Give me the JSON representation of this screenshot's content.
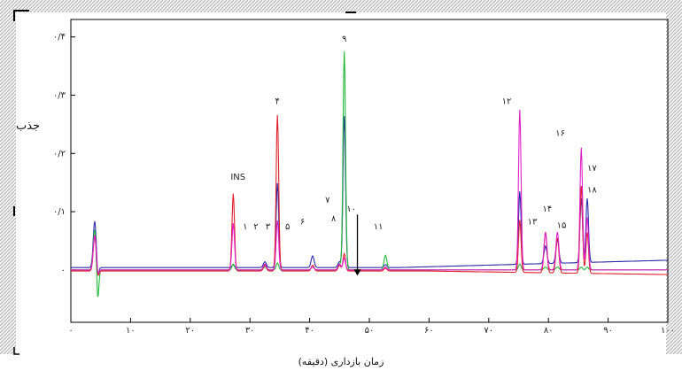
{
  "chart_data": {
    "type": "line",
    "title": "",
    "ylabel": "جذب",
    "xlabel": "زمان بازداری (دقیقه)",
    "xlim": [
      0,
      100
    ],
    "ylim": [
      -0.09,
      0.43
    ],
    "x_ticks": [
      0,
      10,
      20,
      30,
      40,
      50,
      60,
      70,
      80,
      90,
      100
    ],
    "x_tick_labels": [
      "۰",
      "۱۰",
      "۲۰",
      "۳۰",
      "۴۰",
      "۵۰",
      "۶۰",
      "۷۰",
      "۸۰",
      "۹۰",
      "۱۰۰"
    ],
    "y_ticks": [
      0,
      0.1,
      0.2,
      0.3,
      0.4
    ],
    "y_tick_labels": [
      "۰",
      "۰/۱",
      "۰/۲",
      "۰/۳",
      "۰/۴"
    ],
    "grid": false,
    "series_colors": {
      "blue": "#2a2aa8",
      "red": "#e0202a",
      "green": "#22b83a",
      "magenta": "#e020c8",
      "black": "#000000"
    },
    "peaks": [
      {
        "x": 4.0,
        "blue": 0.08,
        "red": 0.06,
        "green": 0.07,
        "magenta": 0.06
      },
      {
        "x": 27.2,
        "blue": 0.005,
        "red": 0.133,
        "green": 0.01,
        "magenta": 0.08
      },
      {
        "x": 32.5,
        "blue": 0.01,
        "red": 0.01,
        "green": 0.005,
        "magenta": 0.01
      },
      {
        "x": 34.6,
        "blue": 0.145,
        "red": 0.268,
        "green": 0.012,
        "magenta": 0.085
      },
      {
        "x": 40.5,
        "blue": 0.02,
        "red": 0.01,
        "green": 0.005,
        "magenta": 0.005
      },
      {
        "x": 45.0,
        "blue": 0.01,
        "red": 0.01,
        "green": 0.01,
        "magenta": 0.01
      },
      {
        "x": 45.8,
        "blue": 0.26,
        "red": 0.03,
        "green": 0.375,
        "magenta": 0.02
      },
      {
        "x": 52.7,
        "blue": 0.005,
        "red": 0.005,
        "green": 0.025,
        "magenta": 0.005
      },
      {
        "x": 75.2,
        "blue": 0.125,
        "red": 0.09,
        "green": 0.01,
        "magenta": 0.275
      },
      {
        "x": 79.5,
        "blue": 0.03,
        "red": 0.07,
        "green": 0.005,
        "magenta": 0.065
      },
      {
        "x": 81.5,
        "blue": 0.04,
        "red": 0.06,
        "green": 0.005,
        "magenta": 0.065
      },
      {
        "x": 85.5,
        "blue": 0.11,
        "red": 0.15,
        "green": 0.005,
        "magenta": 0.21
      },
      {
        "x": 86.5,
        "blue": 0.11,
        "red": 0.07,
        "green": 0.005,
        "magenta": 0.09
      }
    ],
    "annotations": [
      {
        "text": "INS",
        "x": 28.0,
        "y": 0.155
      },
      {
        "text": "۱",
        "x": 29.2,
        "y": 0.07
      },
      {
        "text": "۲",
        "x": 31.0,
        "y": 0.07
      },
      {
        "text": "۳",
        "x": 33.0,
        "y": 0.07
      },
      {
        "text": "۴",
        "x": 34.6,
        "y": 0.285
      },
      {
        "text": "۵",
        "x": 36.3,
        "y": 0.07
      },
      {
        "text": "۶",
        "x": 38.8,
        "y": 0.078
      },
      {
        "text": "۷",
        "x": 43.0,
        "y": 0.115
      },
      {
        "text": "۸",
        "x": 44.0,
        "y": 0.083
      },
      {
        "text": "۹",
        "x": 45.8,
        "y": 0.392
      },
      {
        "text": "۱۰",
        "x": 47.0,
        "y": 0.1
      },
      {
        "text": "۱۱",
        "x": 51.5,
        "y": 0.07
      },
      {
        "text": "۱۲",
        "x": 73.0,
        "y": 0.285
      },
      {
        "text": "۱۳",
        "x": 77.3,
        "y": 0.078
      },
      {
        "text": "۱۴",
        "x": 79.8,
        "y": 0.1
      },
      {
        "text": "۱۵",
        "x": 82.2,
        "y": 0.072
      },
      {
        "text": "۱۶",
        "x": 82.0,
        "y": 0.23
      },
      {
        "text": "۱۷",
        "x": 87.3,
        "y": 0.17
      },
      {
        "text": "۱۸",
        "x": 87.3,
        "y": 0.133
      }
    ],
    "arrow": {
      "x": 48.0,
      "y_from": 0.095,
      "y_to": -0.01
    }
  }
}
